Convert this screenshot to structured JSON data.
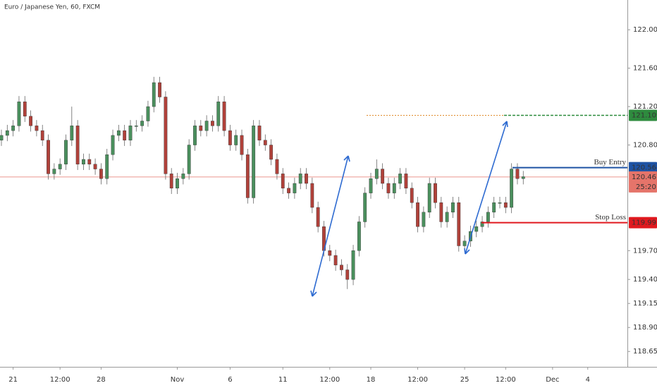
{
  "chart_data": {
    "type": "candlestick",
    "title": "Euro / Japanese Yen, 60, FXCM",
    "up_color": "#4a8f5d",
    "down_color": "#b0413a",
    "ylim": [
      118.49,
      122.31
    ],
    "yticks": [
      {
        "value": 122.0,
        "label": "122.000"
      },
      {
        "value": 121.6,
        "label": "121.600"
      },
      {
        "value": 121.2,
        "label": "121.200"
      },
      {
        "value": 120.8,
        "label": "120.800"
      },
      {
        "value": 119.7,
        "label": "119.700"
      },
      {
        "value": 119.4,
        "label": "119.400"
      },
      {
        "value": 119.15,
        "label": "119.150"
      },
      {
        "value": 118.9,
        "label": "118.900"
      },
      {
        "value": 118.65,
        "label": "118.650"
      }
    ],
    "xlim": [
      0,
      107
    ],
    "xticks": [
      {
        "value": 2,
        "label": "21"
      },
      {
        "value": 10,
        "label": "12:00"
      },
      {
        "value": 17,
        "label": "28"
      },
      {
        "value": 30,
        "label": "Nov"
      },
      {
        "value": 39,
        "label": "6"
      },
      {
        "value": 48,
        "label": "11"
      },
      {
        "value": 56,
        "label": "12:00"
      },
      {
        "value": 63,
        "label": "18"
      },
      {
        "value": 71,
        "label": "12:00"
      },
      {
        "value": 79,
        "label": "25"
      },
      {
        "value": 86,
        "label": "12:00"
      },
      {
        "value": 94,
        "label": "Dec"
      },
      {
        "value": 100,
        "label": "4"
      }
    ],
    "open": [
      120.85,
      120.9,
      120.95,
      121.0,
      121.25,
      121.1,
      121.0,
      120.95,
      120.85,
      120.5,
      120.55,
      120.6,
      120.85,
      121.0,
      120.6,
      120.65,
      120.6,
      120.55,
      120.45,
      120.7,
      120.9,
      120.95,
      120.85,
      121.0,
      121.0,
      121.05,
      121.2,
      121.45,
      121.3,
      120.5,
      120.35,
      120.45,
      120.5,
      120.8,
      121.0,
      120.95,
      121.05,
      121.0,
      121.25,
      120.95,
      120.8,
      120.9,
      120.7,
      120.25,
      121.0,
      120.85,
      120.8,
      120.65,
      120.5,
      120.35,
      120.3,
      120.4,
      120.5,
      120.4,
      120.15,
      119.95,
      119.7,
      119.65,
      119.55,
      119.5,
      119.4,
      119.7,
      120.0,
      120.3,
      120.45,
      120.55,
      120.4,
      120.3,
      120.4,
      120.5,
      120.35,
      120.2,
      119.95,
      120.1,
      120.4,
      120.2,
      120.0,
      120.1,
      120.2,
      119.75,
      119.8,
      119.9,
      119.95,
      120.0,
      120.1,
      120.2,
      120.2,
      120.15,
      120.55,
      120.45
    ],
    "high": [
      120.96,
      121.01,
      121.06,
      121.31,
      121.31,
      121.16,
      121.06,
      121.01,
      120.91,
      120.61,
      120.66,
      120.91,
      121.2,
      121.06,
      120.71,
      120.71,
      120.66,
      120.61,
      120.76,
      120.96,
      121.01,
      121.01,
      121.06,
      121.06,
      121.11,
      121.26,
      121.51,
      121.51,
      121.36,
      120.56,
      120.51,
      120.56,
      120.86,
      121.06,
      121.06,
      121.11,
      121.11,
      121.31,
      121.31,
      121.01,
      120.96,
      120.96,
      120.76,
      121.06,
      121.06,
      120.91,
      120.86,
      120.71,
      120.56,
      120.41,
      120.46,
      120.56,
      120.56,
      120.46,
      120.21,
      120.01,
      119.76,
      119.71,
      119.61,
      119.56,
      119.76,
      120.06,
      120.36,
      120.51,
      120.65,
      120.61,
      120.46,
      120.46,
      120.56,
      120.56,
      120.41,
      120.26,
      120.16,
      120.46,
      120.46,
      120.26,
      120.16,
      120.26,
      120.26,
      119.86,
      119.96,
      120.01,
      120.06,
      120.16,
      120.26,
      120.26,
      120.26,
      120.61,
      120.61,
      120.53
    ],
    "low": [
      120.79,
      120.84,
      120.89,
      120.94,
      121.04,
      120.94,
      120.89,
      120.79,
      120.44,
      120.44,
      120.49,
      120.54,
      120.79,
      120.54,
      120.54,
      120.54,
      120.49,
      120.39,
      120.39,
      120.64,
      120.84,
      120.79,
      120.79,
      120.94,
      120.94,
      120.99,
      121.14,
      121.24,
      120.44,
      120.29,
      120.29,
      120.39,
      120.44,
      120.74,
      120.89,
      120.89,
      120.94,
      120.94,
      120.89,
      120.74,
      120.74,
      120.64,
      120.19,
      120.19,
      120.79,
      120.74,
      120.59,
      120.44,
      120.29,
      120.24,
      120.24,
      120.34,
      120.34,
      120.09,
      119.89,
      119.64,
      119.59,
      119.49,
      119.44,
      119.3,
      119.34,
      119.64,
      119.94,
      120.24,
      120.39,
      120.34,
      120.24,
      120.24,
      120.34,
      120.29,
      120.14,
      119.89,
      119.89,
      120.04,
      120.14,
      119.94,
      119.94,
      120.04,
      119.69,
      119.69,
      119.74,
      119.84,
      119.89,
      119.94,
      120.04,
      120.14,
      120.09,
      120.09,
      120.39,
      120.39
    ],
    "close": [
      120.9,
      120.95,
      121.0,
      121.25,
      121.1,
      121.0,
      120.95,
      120.85,
      120.5,
      120.55,
      120.6,
      120.85,
      121.0,
      120.6,
      120.65,
      120.6,
      120.55,
      120.45,
      120.7,
      120.9,
      120.95,
      120.85,
      121.0,
      121.0,
      121.05,
      121.2,
      121.45,
      121.3,
      120.5,
      120.35,
      120.45,
      120.5,
      120.8,
      121.0,
      120.95,
      121.05,
      121.0,
      121.25,
      120.95,
      120.8,
      120.9,
      120.7,
      120.25,
      121.0,
      120.85,
      120.8,
      120.65,
      120.5,
      120.35,
      120.3,
      120.4,
      120.5,
      120.4,
      120.15,
      119.95,
      119.7,
      119.65,
      119.55,
      119.5,
      119.4,
      119.7,
      120.0,
      120.3,
      120.45,
      120.55,
      120.4,
      120.3,
      120.4,
      120.5,
      120.35,
      120.2,
      119.95,
      120.1,
      120.4,
      120.2,
      120.0,
      120.1,
      120.2,
      119.75,
      119.8,
      119.9,
      119.95,
      120.0,
      120.1,
      120.2,
      120.2,
      120.15,
      120.55,
      120.45,
      120.47
    ],
    "levels": [
      {
        "name": "Buy Entry",
        "value": 120.564,
        "color": "#1e53a4"
      },
      {
        "name": "Stop Loss",
        "value": 119.991,
        "color": "#e0191f"
      },
      {
        "value": 121.109,
        "color": "#2e8b3e"
      }
    ],
    "last_price": {
      "value": 120.467,
      "color": "#e5746a",
      "countdown": "25:20"
    }
  }
}
